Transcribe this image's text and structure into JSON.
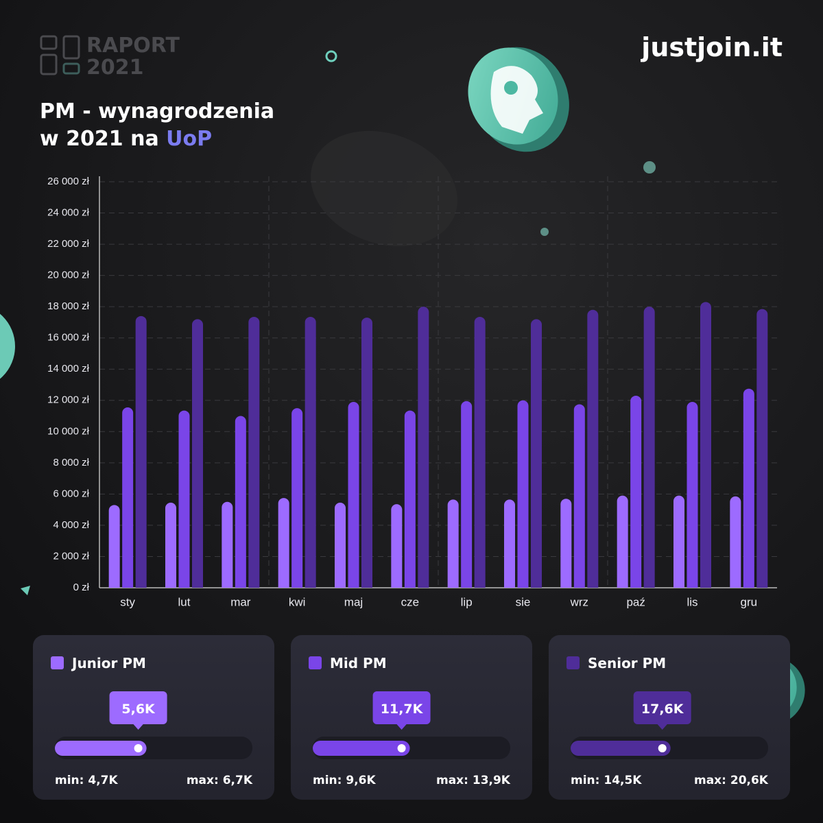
{
  "header": {
    "report": "RAPORT",
    "year": "2021",
    "brand": "justjoin.it"
  },
  "chart_data": {
    "type": "bar",
    "title": "PM - wynagrodzenia",
    "subtitle": "w 2021 na",
    "subtitle_highlight": "UoP",
    "categories": [
      "sty",
      "lut",
      "mar",
      "kwi",
      "maj",
      "cze",
      "lip",
      "sie",
      "wrz",
      "paź",
      "lis",
      "gru"
    ],
    "series": [
      {
        "name": "Junior PM",
        "color": "#9d6bff",
        "values": [
          5300,
          5450,
          5500,
          5750,
          5450,
          5350,
          5650,
          5650,
          5700,
          5900,
          5900,
          5850
        ]
      },
      {
        "name": "Mid PM",
        "color": "#7a45e8",
        "values": [
          11550,
          11350,
          11000,
          11500,
          11900,
          11350,
          11950,
          12000,
          11750,
          12300,
          11900,
          12750
        ]
      },
      {
        "name": "Senior PM",
        "color": "#4f2d99",
        "values": [
          17400,
          17200,
          17350,
          17350,
          17300,
          18000,
          17350,
          17200,
          17800,
          18000,
          18300,
          17850
        ]
      }
    ],
    "ylim": [
      0,
      26000
    ],
    "yticks": [
      {
        "value": 0,
        "label": "0 zł"
      },
      {
        "value": 2000,
        "label": "2 000 zł"
      },
      {
        "value": 4000,
        "label": "4 000 zł"
      },
      {
        "value": 6000,
        "label": "6 000 zł"
      },
      {
        "value": 8000,
        "label": "8 000 zł"
      },
      {
        "value": 10000,
        "label": "10 000 zł"
      },
      {
        "value": 12000,
        "label": "12 000 zł"
      },
      {
        "value": 14000,
        "label": "14 000 zł"
      },
      {
        "value": 16000,
        "label": "16 000 zł"
      },
      {
        "value": 18000,
        "label": "18 000 zł"
      },
      {
        "value": 20000,
        "label": "20 000 zł"
      },
      {
        "value": 22000,
        "label": "22 000 zł"
      },
      {
        "value": 24000,
        "label": "24 000 zł"
      },
      {
        "value": 26000,
        "label": "26 000 zł"
      }
    ],
    "grid": true
  },
  "cards": [
    {
      "name": "Junior PM",
      "avg": {
        "value": 5600,
        "label": "5,6K"
      },
      "min": {
        "value": 4700,
        "label": "min: 4,7K"
      },
      "max": {
        "value": 6700,
        "label": "max: 6,7K"
      }
    },
    {
      "name": "Mid PM",
      "avg": {
        "value": 11700,
        "label": "11,7K"
      },
      "min": {
        "value": 9600,
        "label": "min: 9,6K"
      },
      "max": {
        "value": 13900,
        "label": "max: 13,9K"
      }
    },
    {
      "name": "Senior PM",
      "avg": {
        "value": 17600,
        "label": "17,6K"
      },
      "min": {
        "value": 14500,
        "label": "min: 14,5K"
      },
      "max": {
        "value": 20600,
        "label": "max: 20,6K"
      }
    }
  ]
}
